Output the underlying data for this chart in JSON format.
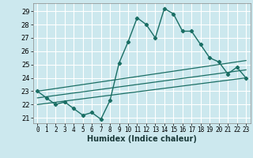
{
  "xlabel": "Humidex (Indice chaleur)",
  "bg_color": "#cce8ee",
  "grid_color": "#ffffff",
  "line_color": "#1a6e64",
  "xlim": [
    -0.5,
    23.5
  ],
  "ylim": [
    20.6,
    29.6
  ],
  "xticks": [
    0,
    1,
    2,
    3,
    4,
    5,
    6,
    7,
    8,
    9,
    10,
    11,
    12,
    13,
    14,
    15,
    16,
    17,
    18,
    19,
    20,
    21,
    22,
    23
  ],
  "yticks": [
    21,
    22,
    23,
    24,
    25,
    26,
    27,
    28,
    29
  ],
  "main_x": [
    0,
    1,
    2,
    3,
    4,
    5,
    6,
    7,
    8,
    9,
    10,
    11,
    12,
    13,
    14,
    15,
    16,
    17,
    18,
    19,
    20,
    21,
    22,
    23
  ],
  "main_y": [
    23.0,
    22.5,
    22.0,
    22.2,
    21.7,
    21.2,
    21.4,
    20.9,
    22.3,
    25.1,
    26.7,
    28.5,
    28.0,
    27.0,
    29.2,
    28.8,
    27.5,
    27.5,
    26.5,
    25.5,
    25.2,
    24.3,
    24.8,
    24.0
  ],
  "trend1_x": [
    0,
    23
  ],
  "trend1_y": [
    23.0,
    25.3
  ],
  "trend2_x": [
    0,
    23
  ],
  "trend2_y": [
    22.5,
    24.6
  ],
  "trend3_x": [
    0,
    23
  ],
  "trend3_y": [
    22.0,
    24.0
  ]
}
